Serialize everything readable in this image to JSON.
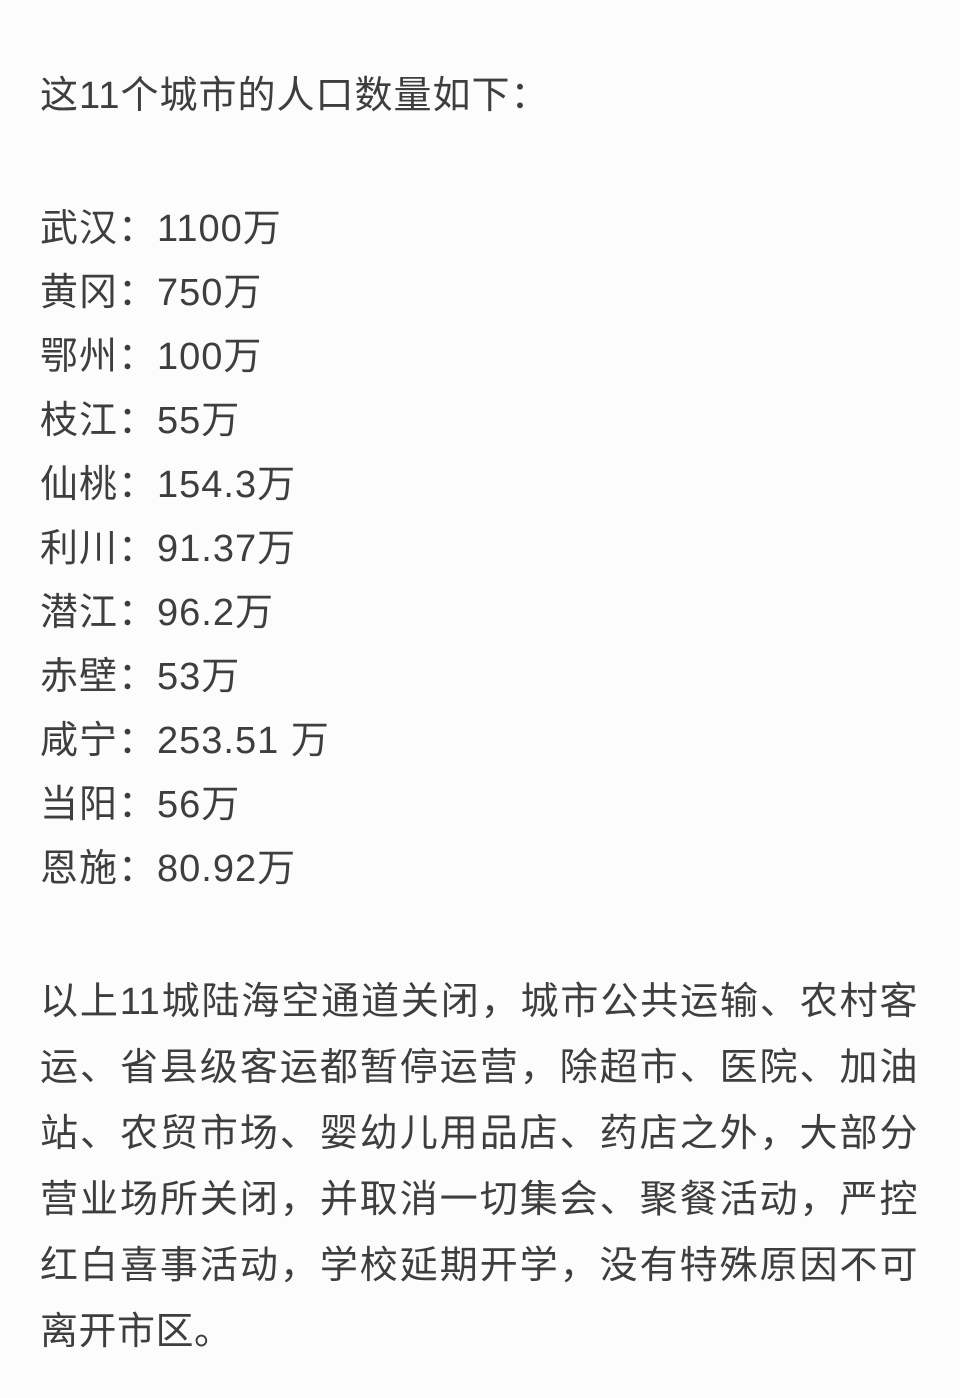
{
  "document": {
    "colors": {
      "background": "#fcfcfc",
      "text": "#3e3e3e"
    },
    "separator": "：",
    "title": "这11个城市的人口数量如下：",
    "city_populations": [
      {
        "city": "武汉",
        "population": "1100万"
      },
      {
        "city": "黄冈",
        "population": "750万"
      },
      {
        "city": "鄂州",
        "population": "100万"
      },
      {
        "city": "枝江",
        "population": "55万"
      },
      {
        "city": "仙桃",
        "population": "154.3万"
      },
      {
        "city": "利川",
        "population": "91.37万"
      },
      {
        "city": "潜江",
        "population": "96.2万"
      },
      {
        "city": "赤壁",
        "population": "53万"
      },
      {
        "city": "咸宁",
        "population": "253.51 万"
      },
      {
        "city": "当阳",
        "population": "56万"
      },
      {
        "city": "恩施",
        "population": "80.92万"
      }
    ],
    "paragraph": "以上11城陆海空通道关闭，城市公共运输、农村客运、省县级客运都暂停运营，除超市、医院、加油站、农贸市场、婴幼儿用品店、药店之外，大部分营业场所关闭，并取消一切集会、聚餐活动，严控红白喜事活动，学校延期开学，没有特殊原因不可离开市区。"
  }
}
